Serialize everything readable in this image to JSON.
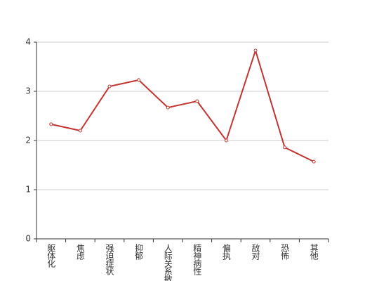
{
  "chart_data": {
    "type": "line",
    "categories": [
      "躯体化",
      "焦虑",
      "强迫症状",
      "抑郁",
      "人际关系敏感",
      "精神病性",
      "偏执",
      "敌对",
      "恐怖",
      "其他"
    ],
    "values": [
      2.33,
      2.2,
      3.1,
      3.23,
      2.67,
      2.8,
      2.0,
      3.83,
      1.86,
      1.57
    ],
    "color": "#c23531",
    "ylim": [
      0,
      4
    ],
    "yticks": [
      0,
      1,
      2,
      3,
      4
    ],
    "grid": true
  }
}
